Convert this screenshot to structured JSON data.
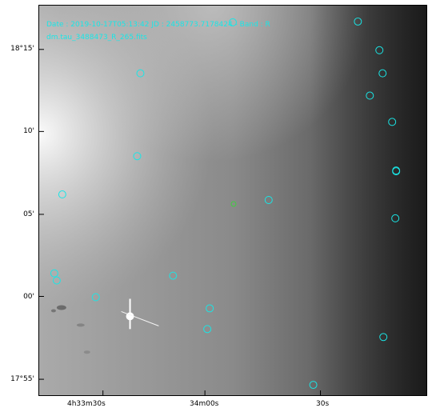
{
  "overlay": {
    "line1": "Date : 2019-10-17T05:13:42  JD : 2458773.7178424  -  Band : R",
    "line2": "dm.tau_3488473_R_265.fits"
  },
  "colors": {
    "marker": "#19e6e6",
    "target": "#3fcf3f"
  },
  "axes": {
    "y_labels": [
      "18°15'",
      "10'",
      "05'",
      "00'",
      "17°55'"
    ],
    "x_labels": [
      "4h33m30s",
      "34m00s",
      "30s"
    ]
  }
}
